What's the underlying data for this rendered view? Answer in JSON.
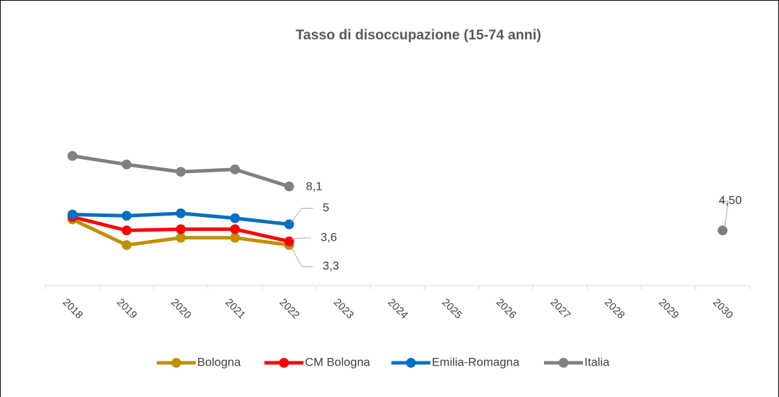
{
  "chart_data": {
    "type": "line",
    "title": "Tasso di disoccupazione (15-74 anni)",
    "categories": [
      "2018",
      "2019",
      "2020",
      "2021",
      "2022",
      "2023",
      "2024",
      "2025",
      "2026",
      "2027",
      "2028",
      "2029",
      "2030"
    ],
    "ylim": [
      0,
      18
    ],
    "legend": "bottom",
    "series": [
      {
        "name": "Bologna",
        "color": "#bf9000",
        "values": [
          5.4,
          3.3,
          3.9,
          3.9,
          3.3,
          null,
          null,
          null,
          null,
          null,
          null,
          null,
          null
        ],
        "value_labels": [
          null,
          null,
          null,
          null,
          "3,3",
          null,
          null,
          null,
          null,
          null,
          null,
          null,
          null
        ]
      },
      {
        "name": "CM Bologna",
        "color": "#ff0000",
        "values": [
          5.6,
          4.5,
          4.6,
          4.6,
          3.6,
          null,
          null,
          null,
          null,
          null,
          null,
          null,
          null
        ],
        "value_labels": [
          null,
          null,
          null,
          null,
          "3,6",
          null,
          null,
          null,
          null,
          null,
          null,
          null,
          null
        ]
      },
      {
        "name": "Emilia-Romagna",
        "color": "#0070c0",
        "values": [
          5.8,
          5.7,
          5.9,
          5.5,
          5,
          null,
          null,
          null,
          null,
          null,
          null,
          null,
          null
        ],
        "value_labels": [
          null,
          null,
          null,
          null,
          "5",
          null,
          null,
          null,
          null,
          null,
          null,
          null,
          null
        ]
      },
      {
        "name": "Italia",
        "color": "#808080",
        "values": [
          10.6,
          9.9,
          9.3,
          9.5,
          8.1,
          null,
          null,
          null,
          null,
          null,
          null,
          null,
          4.5
        ],
        "value_labels": [
          null,
          null,
          null,
          null,
          "8,1",
          null,
          null,
          null,
          null,
          null,
          null,
          null,
          "4,50"
        ]
      }
    ]
  }
}
